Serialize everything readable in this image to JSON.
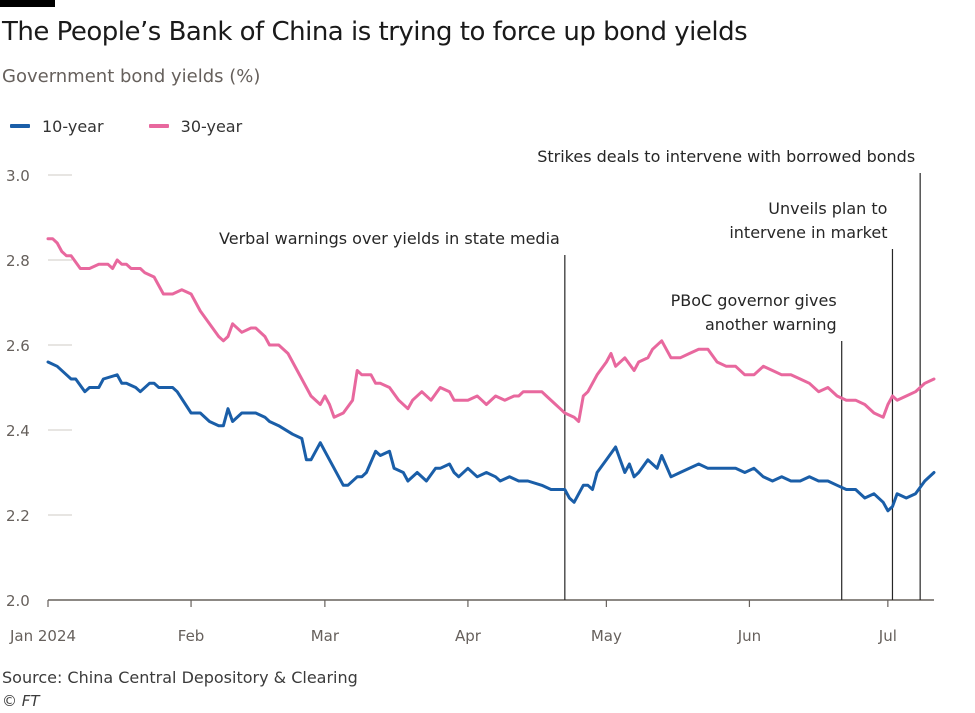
{
  "header": {
    "title": "The People’s Bank of China is trying to force up bond yields",
    "subtitle": "Government bond yields (%)"
  },
  "legend": [
    {
      "label": "10-year",
      "color": "#1a5ea8"
    },
    {
      "label": "30-year",
      "color": "#e8689e"
    }
  ],
  "footer": {
    "source": "Source: China Central Depository & Clearing",
    "copyright": "© FT"
  },
  "chart_data": {
    "type": "line",
    "title": "The People’s Bank of China is trying to force up bond yields",
    "ylabel": "Government bond yields (%)",
    "ylim": [
      2.0,
      3.0
    ],
    "yticks": [
      "2.0",
      "2.2",
      "2.4",
      "2.6",
      "2.8",
      "3.0"
    ],
    "xlim": [
      0,
      192
    ],
    "xticks": [
      {
        "label": "Jan 2024",
        "day": 0
      },
      {
        "label": "Feb",
        "day": 31
      },
      {
        "label": "Mar",
        "day": 60
      },
      {
        "label": "Apr",
        "day": 91
      },
      {
        "label": "May",
        "day": 121
      },
      {
        "label": "Jun",
        "day": 152
      },
      {
        "label": "Jul",
        "day": 182
      }
    ],
    "series": [
      {
        "name": "10-year",
        "color": "#1a5ea8",
        "x": [
          0,
          2,
          4,
          5,
          6,
          8,
          9,
          10,
          11,
          12,
          15,
          16,
          17,
          19,
          20,
          22,
          23,
          24,
          25,
          27,
          28,
          31,
          33,
          35,
          37,
          38,
          39,
          40,
          42,
          44,
          45,
          47,
          48,
          50,
          53,
          55,
          56,
          57,
          59,
          60,
          62,
          64,
          65,
          67,
          68,
          69,
          71,
          72,
          74,
          75,
          77,
          78,
          80,
          82,
          84,
          85,
          87,
          88,
          89,
          91,
          93,
          95,
          97,
          98,
          100,
          102,
          104,
          107,
          109,
          111,
          112,
          113,
          114,
          116,
          117,
          118,
          119,
          121,
          123,
          125,
          126,
          127,
          128,
          130,
          132,
          133,
          135,
          137,
          139,
          141,
          143,
          145,
          147,
          149,
          151,
          153,
          155,
          157,
          159,
          161,
          163,
          165,
          167,
          169,
          171,
          173,
          175,
          177,
          179,
          181,
          182,
          183,
          184,
          186,
          188,
          190,
          192
        ],
        "values": [
          2.56,
          2.55,
          2.53,
          2.52,
          2.52,
          2.49,
          2.5,
          2.5,
          2.5,
          2.52,
          2.53,
          2.51,
          2.51,
          2.5,
          2.49,
          2.51,
          2.51,
          2.5,
          2.5,
          2.5,
          2.49,
          2.44,
          2.44,
          2.42,
          2.41,
          2.41,
          2.45,
          2.42,
          2.44,
          2.44,
          2.44,
          2.43,
          2.42,
          2.41,
          2.39,
          2.38,
          2.33,
          2.33,
          2.37,
          2.35,
          2.31,
          2.27,
          2.27,
          2.29,
          2.29,
          2.3,
          2.35,
          2.34,
          2.35,
          2.31,
          2.3,
          2.28,
          2.3,
          2.28,
          2.31,
          2.31,
          2.32,
          2.3,
          2.29,
          2.31,
          2.29,
          2.3,
          2.29,
          2.28,
          2.29,
          2.28,
          2.28,
          2.27,
          2.26,
          2.26,
          2.26,
          2.24,
          2.23,
          2.27,
          2.27,
          2.26,
          2.3,
          2.33,
          2.36,
          2.3,
          2.32,
          2.29,
          2.3,
          2.33,
          2.31,
          2.34,
          2.29,
          2.3,
          2.31,
          2.32,
          2.31,
          2.31,
          2.31,
          2.31,
          2.3,
          2.31,
          2.29,
          2.28,
          2.29,
          2.28,
          2.28,
          2.29,
          2.28,
          2.28,
          2.27,
          2.26,
          2.26,
          2.24,
          2.25,
          2.23,
          2.21,
          2.22,
          2.25,
          2.24,
          2.25,
          2.28,
          2.3
        ]
      },
      {
        "name": "30-year",
        "color": "#e8689e",
        "x": [
          0,
          1,
          2,
          3,
          4,
          5,
          7,
          8,
          9,
          11,
          13,
          14,
          15,
          16,
          17,
          18,
          19,
          20,
          21,
          23,
          25,
          27,
          29,
          31,
          33,
          35,
          37,
          38,
          39,
          40,
          42,
          44,
          45,
          47,
          48,
          50,
          52,
          54,
          56,
          57,
          59,
          60,
          61,
          62,
          64,
          66,
          67,
          68,
          70,
          71,
          72,
          74,
          76,
          78,
          79,
          81,
          83,
          85,
          87,
          88,
          89,
          91,
          93,
          94,
          95,
          97,
          99,
          101,
          102,
          103,
          105,
          107,
          108,
          110,
          111,
          112,
          114,
          115,
          116,
          117,
          119,
          121,
          122,
          123,
          125,
          127,
          128,
          130,
          131,
          133,
          135,
          137,
          139,
          141,
          143,
          145,
          147,
          149,
          151,
          153,
          155,
          157,
          159,
          161,
          163,
          165,
          167,
          169,
          171,
          173,
          175,
          177,
          179,
          181,
          182,
          183,
          184,
          186,
          188,
          190,
          192
        ],
        "values": [
          2.85,
          2.85,
          2.84,
          2.82,
          2.81,
          2.81,
          2.78,
          2.78,
          2.78,
          2.79,
          2.79,
          2.78,
          2.8,
          2.79,
          2.79,
          2.78,
          2.78,
          2.78,
          2.77,
          2.76,
          2.72,
          2.72,
          2.73,
          2.72,
          2.68,
          2.65,
          2.62,
          2.61,
          2.62,
          2.65,
          2.63,
          2.64,
          2.64,
          2.62,
          2.6,
          2.6,
          2.58,
          2.54,
          2.5,
          2.48,
          2.46,
          2.48,
          2.46,
          2.43,
          2.44,
          2.47,
          2.54,
          2.53,
          2.53,
          2.51,
          2.51,
          2.5,
          2.47,
          2.45,
          2.47,
          2.49,
          2.47,
          2.5,
          2.49,
          2.47,
          2.47,
          2.47,
          2.48,
          2.47,
          2.46,
          2.48,
          2.47,
          2.48,
          2.48,
          2.49,
          2.49,
          2.49,
          2.48,
          2.46,
          2.45,
          2.44,
          2.43,
          2.42,
          2.48,
          2.49,
          2.53,
          2.56,
          2.58,
          2.55,
          2.57,
          2.54,
          2.56,
          2.57,
          2.59,
          2.61,
          2.57,
          2.57,
          2.58,
          2.59,
          2.59,
          2.56,
          2.55,
          2.55,
          2.53,
          2.53,
          2.55,
          2.54,
          2.53,
          2.53,
          2.52,
          2.51,
          2.49,
          2.5,
          2.48,
          2.47,
          2.47,
          2.46,
          2.44,
          2.43,
          2.46,
          2.48,
          2.47,
          2.48,
          2.49,
          2.51,
          2.52
        ]
      }
    ],
    "annotations": [
      {
        "day": 112,
        "lines": [
          "Verbal warnings over yields in state media"
        ]
      },
      {
        "day": 172,
        "lines": [
          "PBoC governor gives",
          "another warning"
        ]
      },
      {
        "day": 183,
        "lines": [
          "Unveils plan to",
          "intervene in market"
        ]
      },
      {
        "day": 189,
        "lines": [
          "Strikes deals to intervene with borrowed bonds"
        ]
      }
    ]
  }
}
